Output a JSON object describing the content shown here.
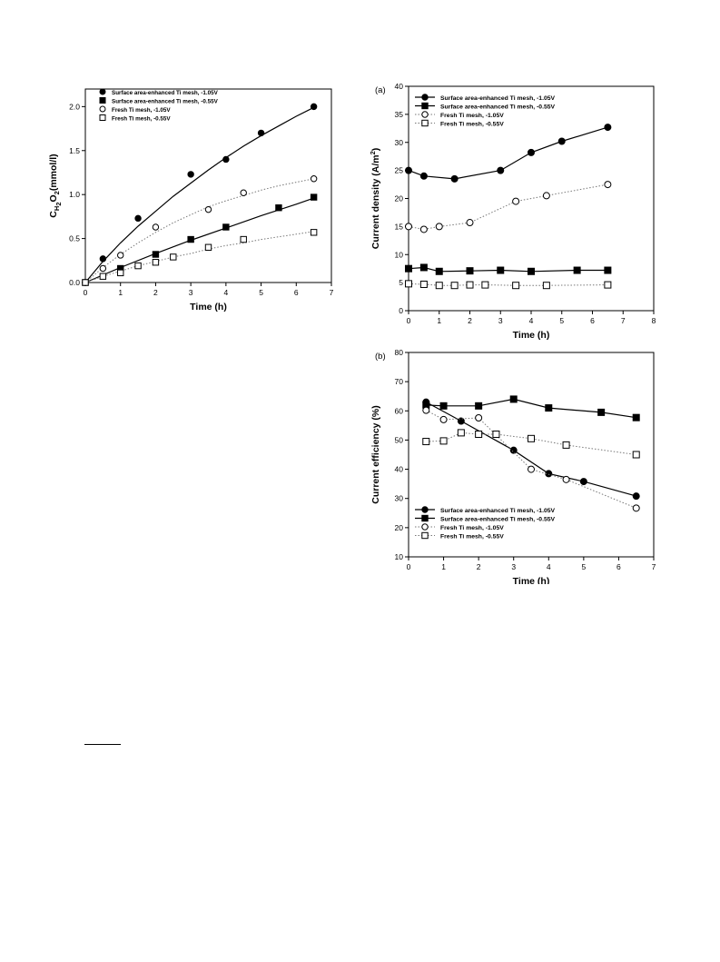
{
  "chart_data": [
    {
      "type": "scatter",
      "title": "",
      "xlabel": "Time (h)",
      "ylabel": "C_H2O2(mmol/l)",
      "ylabel_parts": {
        "main": "C",
        "sub": "H",
        "sub2": "2",
        "mid": "O",
        "sub3": "2",
        "tail": "(mmol/l)"
      },
      "xlim": [
        0,
        7
      ],
      "ylim": [
        0,
        2.2
      ],
      "xticks": [
        "0",
        "1",
        "2",
        "3",
        "4",
        "5",
        "6",
        "7"
      ],
      "yticks": [
        "0.0",
        "0.5",
        "1.0",
        "1.5",
        "2.0"
      ],
      "grid": false,
      "legend_position": "top-left",
      "series": [
        {
          "name": "Surface area-enhanced Ti mesh, -1.05V",
          "marker": "filled-circle",
          "line": "solid",
          "x": [
            0,
            0.5,
            1.5,
            3,
            4,
            5,
            6.5
          ],
          "y": [
            0,
            0.27,
            0.73,
            1.23,
            1.4,
            1.7,
            2.0
          ],
          "fit": {
            "x": [
              0,
              0.5,
              1,
              1.5,
              2,
              2.5,
              3,
              3.5,
              4,
              4.5,
              5,
              5.5,
              6,
              6.5
            ],
            "y": [
              0,
              0.24,
              0.45,
              0.64,
              0.81,
              0.98,
              1.13,
              1.28,
              1.42,
              1.55,
              1.67,
              1.78,
              1.89,
              1.99
            ]
          }
        },
        {
          "name": "Surface area-enhanced Ti mesh, -0.55V",
          "marker": "filled-square",
          "line": "solid",
          "x": [
            0,
            1,
            2,
            3,
            4,
            5.5,
            6.5
          ],
          "y": [
            0,
            0.16,
            0.32,
            0.49,
            0.63,
            0.85,
            0.97
          ],
          "fit": {
            "x": [
              0,
              1,
              2,
              3,
              4,
              5,
              6,
              6.5
            ],
            "y": [
              0,
              0.17,
              0.33,
              0.48,
              0.62,
              0.76,
              0.89,
              0.96
            ]
          }
        },
        {
          "name": "Fresh Ti mesh, -1.05V",
          "marker": "open-circle",
          "line": "dotted",
          "x": [
            0,
            0.5,
            1,
            2,
            3.5,
            4.5,
            6.5
          ],
          "y": [
            0,
            0.16,
            0.31,
            0.63,
            0.83,
            1.02,
            1.18
          ],
          "fit": {
            "x": [
              0,
              0.5,
              1,
              1.5,
              2,
              2.5,
              3,
              3.5,
              4,
              4.5,
              5,
              5.5,
              6,
              6.5
            ],
            "y": [
              0,
              0.17,
              0.32,
              0.45,
              0.57,
              0.68,
              0.77,
              0.86,
              0.93,
              0.99,
              1.05,
              1.1,
              1.14,
              1.18
            ]
          }
        },
        {
          "name": "Fresh Ti mesh, -0.55V",
          "marker": "open-square",
          "line": "dotted",
          "x": [
            0,
            0.5,
            1,
            1.5,
            2,
            2.5,
            3.5,
            4.5,
            6.5
          ],
          "y": [
            0,
            0.07,
            0.11,
            0.19,
            0.23,
            0.29,
            0.4,
            0.49,
            0.57
          ],
          "fit": {
            "x": [
              0,
              0.5,
              1,
              1.5,
              2,
              2.5,
              3,
              3.5,
              4,
              4.5,
              5,
              5.5,
              6,
              6.5
            ],
            "y": [
              0,
              0.07,
              0.13,
              0.19,
              0.24,
              0.29,
              0.33,
              0.38,
              0.42,
              0.45,
              0.49,
              0.52,
              0.55,
              0.58
            ]
          }
        }
      ]
    },
    {
      "type": "line",
      "panel_label": "(a)",
      "title": "",
      "xlabel": "Time (h)",
      "ylabel": "Current density (A/m²)",
      "ylabel_parts": {
        "main": "Current density (A/m",
        "sup": "2",
        "tail": ")"
      },
      "xlim": [
        0,
        8
      ],
      "ylim": [
        0,
        40
      ],
      "xticks": [
        "0",
        "1",
        "2",
        "3",
        "4",
        "5",
        "6",
        "7",
        "8"
      ],
      "yticks": [
        "0",
        "5",
        "10",
        "15",
        "20",
        "25",
        "30",
        "35",
        "40"
      ],
      "grid": false,
      "legend_position": "top-left",
      "series": [
        {
          "name": "Surface area-enhanced Ti mesh, -1.05V",
          "marker": "filled-circle",
          "line": "solid",
          "x": [
            0,
            0.5,
            1.5,
            3,
            4,
            5,
            6.5
          ],
          "y": [
            25,
            24,
            23.5,
            25,
            28.2,
            30.2,
            32.7
          ]
        },
        {
          "name": "Surface area-enhanced Ti mesh, -0.55V",
          "marker": "filled-square",
          "line": "solid",
          "x": [
            0,
            0.5,
            1,
            2,
            3,
            4,
            5.5,
            6.5
          ],
          "y": [
            7.5,
            7.7,
            7,
            7.1,
            7.2,
            7,
            7.2,
            7.2
          ]
        },
        {
          "name": "Fresh Ti mesh, -1.05V",
          "marker": "open-circle",
          "line": "dotted",
          "x": [
            0,
            0.5,
            1,
            2,
            3.5,
            4.5,
            6.5
          ],
          "y": [
            15,
            14.5,
            15,
            15.7,
            19.5,
            20.5,
            22.5
          ]
        },
        {
          "name": "Fresh Ti mesh, -0.55V",
          "marker": "open-square",
          "line": "dotted",
          "x": [
            0,
            0.5,
            1,
            1.5,
            2,
            2.5,
            3.5,
            4.5,
            6.5
          ],
          "y": [
            4.8,
            4.7,
            4.5,
            4.5,
            4.6,
            4.6,
            4.5,
            4.5,
            4.6
          ]
        }
      ]
    },
    {
      "type": "line",
      "panel_label": "(b)",
      "title": "",
      "xlabel": "Time (h)",
      "ylabel": "Current efficiency (%)",
      "xlim": [
        0,
        7
      ],
      "ylim": [
        10,
        80
      ],
      "xticks": [
        "0",
        "1",
        "2",
        "3",
        "4",
        "5",
        "6",
        "7"
      ],
      "yticks": [
        "10",
        "20",
        "30",
        "40",
        "50",
        "60",
        "70",
        "80"
      ],
      "grid": false,
      "legend_position": "bottom-left",
      "series": [
        {
          "name": "Surface area-enhanced Ti mesh, -1.05V",
          "marker": "filled-circle",
          "line": "solid",
          "x": [
            0.5,
            1.5,
            3,
            4,
            5,
            6.5
          ],
          "y": [
            63,
            56.5,
            46.5,
            38.5,
            35.8,
            30.8
          ]
        },
        {
          "name": "Surface area-enhanced Ti mesh, -0.55V",
          "marker": "filled-square",
          "line": "solid",
          "x": [
            0.5,
            1,
            2,
            3,
            4,
            5.5,
            6.5
          ],
          "y": [
            62,
            61.7,
            61.7,
            64,
            61,
            59.5,
            57.7
          ]
        },
        {
          "name": "Fresh Ti mesh, -1.05V",
          "marker": "open-circle",
          "line": "dotted",
          "x": [
            0.5,
            1,
            2,
            3.5,
            4.5,
            6.5
          ],
          "y": [
            60.2,
            57,
            57.6,
            40,
            36.5,
            26.7
          ]
        },
        {
          "name": "Fresh Ti mesh, -0.55V",
          "marker": "open-square",
          "line": "dotted",
          "x": [
            0.5,
            1,
            1.5,
            2,
            2.5,
            3.5,
            4.5,
            6.5
          ],
          "y": [
            49.5,
            49.7,
            52.5,
            52,
            52,
            50.5,
            48.3,
            45
          ]
        }
      ]
    }
  ]
}
